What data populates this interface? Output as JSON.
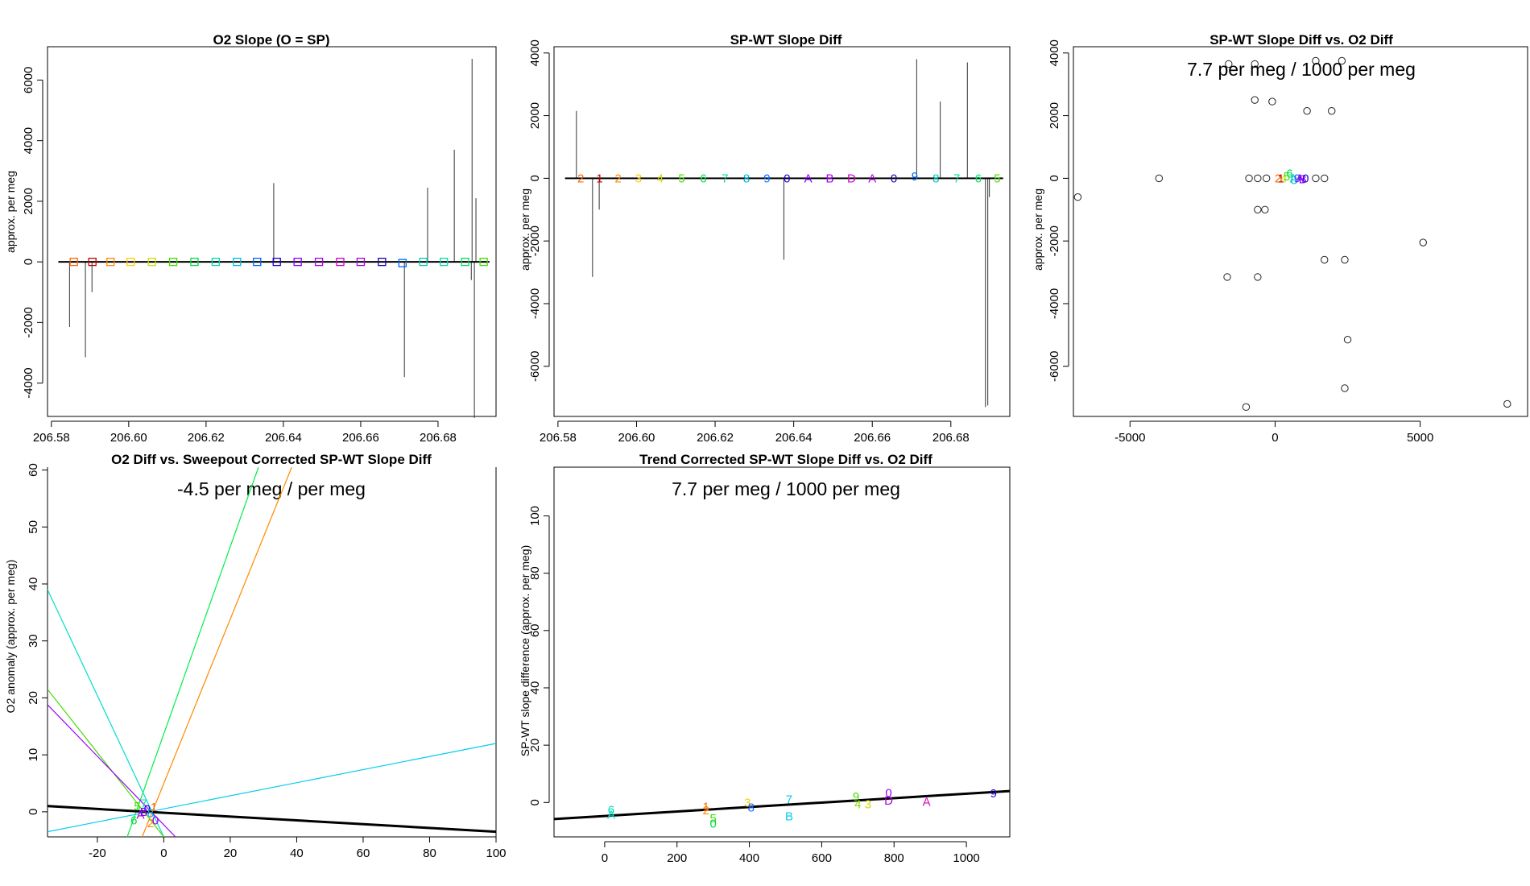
{
  "chart_data": [
    {
      "type": "line",
      "title": "O2 Slope (O = SP)",
      "xlabel": "",
      "ylabel": "approx. per meg",
      "xlim": [
        206.579,
        206.695
      ],
      "ylim": [
        -5100,
        7100
      ],
      "xticks": [
        206.58,
        206.6,
        206.62,
        206.64,
        206.66,
        206.68
      ],
      "xtick_labels": [
        "206.58",
        "206.60",
        "206.62",
        "206.64",
        "206.66",
        "206.68"
      ],
      "yticks": [
        -4000,
        -2000,
        0,
        2000,
        4000,
        6000
      ],
      "ytick_labels": [
        "-4000",
        "-2000",
        "0",
        "2000",
        "4000",
        "6000"
      ],
      "spikes": [
        {
          "x": 206.5847,
          "y": -2150
        },
        {
          "x": 206.5888,
          "y": -3150
        },
        {
          "x": 206.5905,
          "y": -1000
        },
        {
          "x": 206.6375,
          "y": 2600
        },
        {
          "x": 206.6713,
          "y": -3800
        },
        {
          "x": 206.6773,
          "y": 2450
        },
        {
          "x": 206.6842,
          "y": 3700
        },
        {
          "x": 206.6888,
          "y": 6700
        },
        {
          "x": 206.6894,
          "y": -5150
        },
        {
          "x": 206.6898,
          "y": 2100
        },
        {
          "x": 206.6886,
          "y": -600
        }
      ],
      "baseline": {
        "x0": 206.5818,
        "x1": 206.6933,
        "y": 0
      },
      "markers": [
        {
          "x": 206.5858,
          "y": 0,
          "symbol": "square",
          "color": "#ff6600"
        },
        {
          "x": 206.5906,
          "y": 0,
          "symbol": "square",
          "color": "#cc0000"
        },
        {
          "x": 206.5953,
          "y": 0,
          "symbol": "square",
          "color": "#ff8800"
        },
        {
          "x": 206.6005,
          "y": 0,
          "symbol": "square",
          "color": "#ffcc00"
        },
        {
          "x": 206.606,
          "y": 0,
          "symbol": "square",
          "color": "#ccdd00"
        },
        {
          "x": 206.6115,
          "y": 0,
          "symbol": "square",
          "color": "#44dd00"
        },
        {
          "x": 206.617,
          "y": 0,
          "symbol": "square",
          "color": "#00dd44"
        },
        {
          "x": 206.6225,
          "y": 0,
          "symbol": "square",
          "color": "#00ddaa"
        },
        {
          "x": 206.628,
          "y": 0,
          "symbol": "square",
          "color": "#00bbdd"
        },
        {
          "x": 206.6332,
          "y": 0,
          "symbol": "square",
          "color": "#0066ff"
        },
        {
          "x": 206.6383,
          "y": 0,
          "symbol": "square",
          "color": "#2200cc"
        },
        {
          "x": 206.6437,
          "y": 0,
          "symbol": "square",
          "color": "#8800ff"
        },
        {
          "x": 206.6492,
          "y": 0,
          "symbol": "square",
          "color": "#aa00ee"
        },
        {
          "x": 206.6547,
          "y": 0,
          "symbol": "square",
          "color": "#cc00cc"
        },
        {
          "x": 206.66,
          "y": 0,
          "symbol": "square",
          "color": "#aa00dd"
        },
        {
          "x": 206.6655,
          "y": 0,
          "symbol": "square",
          "color": "#2200aa"
        },
        {
          "x": 206.6708,
          "y": -40,
          "symbol": "square",
          "color": "#0066ff"
        },
        {
          "x": 206.6762,
          "y": 0,
          "symbol": "square",
          "color": "#00ccbb"
        },
        {
          "x": 206.6815,
          "y": 0,
          "symbol": "square",
          "color": "#00ddaa"
        },
        {
          "x": 206.687,
          "y": 0,
          "symbol": "square",
          "color": "#00dd66"
        },
        {
          "x": 206.6918,
          "y": 0,
          "symbol": "square",
          "color": "#44dd00"
        }
      ]
    },
    {
      "type": "line",
      "title": "SP-WT Slope Diff",
      "xlabel": "",
      "ylabel": "approx. per meg",
      "xlim": [
        206.579,
        206.695
      ],
      "ylim": [
        -7600,
        4200
      ],
      "xticks": [
        206.58,
        206.6,
        206.62,
        206.64,
        206.66,
        206.68
      ],
      "xtick_labels": [
        "206.58",
        "206.60",
        "206.62",
        "206.64",
        "206.66",
        "206.68"
      ],
      "yticks": [
        -6000,
        -4000,
        -2000,
        0,
        2000,
        4000
      ],
      "ytick_labels": [
        "-6000",
        "-4000",
        "-2000",
        "0",
        "2000",
        "4000"
      ],
      "spikes": [
        {
          "x": 206.5847,
          "y": 2150
        },
        {
          "x": 206.5888,
          "y": -3150
        },
        {
          "x": 206.5905,
          "y": -1000
        },
        {
          "x": 206.6375,
          "y": -2600
        },
        {
          "x": 206.6713,
          "y": 3800
        },
        {
          "x": 206.6773,
          "y": 2450
        },
        {
          "x": 206.6842,
          "y": 3700
        },
        {
          "x": 206.6888,
          "y": -7300
        },
        {
          "x": 206.6894,
          "y": -7250
        },
        {
          "x": 206.6898,
          "y": -600
        }
      ],
      "baseline": {
        "x0": 206.5818,
        "x1": 206.6933,
        "y": 0
      },
      "markers": [
        {
          "x": 206.5858,
          "y": 0,
          "label": "2",
          "color": "#ff6600"
        },
        {
          "x": 206.5906,
          "y": 0,
          "label": "1",
          "color": "#cc0000"
        },
        {
          "x": 206.5953,
          "y": 0,
          "label": "2",
          "color": "#ff8800"
        },
        {
          "x": 206.6005,
          "y": 0,
          "label": "3",
          "color": "#ffcc00"
        },
        {
          "x": 206.606,
          "y": 0,
          "label": "4",
          "color": "#ccdd00"
        },
        {
          "x": 206.6115,
          "y": 0,
          "label": "5",
          "color": "#44dd00"
        },
        {
          "x": 206.617,
          "y": 0,
          "label": "6",
          "color": "#00dd44"
        },
        {
          "x": 206.6225,
          "y": 0,
          "label": "7",
          "color": "#00ddaa"
        },
        {
          "x": 206.628,
          "y": 0,
          "label": "8",
          "color": "#00bbdd"
        },
        {
          "x": 206.6332,
          "y": 0,
          "label": "9",
          "color": "#0066ff"
        },
        {
          "x": 206.6383,
          "y": 0,
          "label": "0",
          "color": "#2200cc"
        },
        {
          "x": 206.6437,
          "y": 0,
          "label": "A",
          "color": "#8800ff"
        },
        {
          "x": 206.6492,
          "y": 0,
          "label": "B",
          "color": "#aa00ee"
        },
        {
          "x": 206.6547,
          "y": 0,
          "label": "D",
          "color": "#cc00cc"
        },
        {
          "x": 206.66,
          "y": 0,
          "label": "A",
          "color": "#aa00dd"
        },
        {
          "x": 206.6655,
          "y": 0,
          "label": "0",
          "color": "#2200aa"
        },
        {
          "x": 206.6708,
          "y": 60,
          "label": "9",
          "color": "#0066ff"
        },
        {
          "x": 206.6762,
          "y": 0,
          "label": "8",
          "color": "#00ccbb"
        },
        {
          "x": 206.6815,
          "y": 0,
          "label": "7",
          "color": "#00ddaa"
        },
        {
          "x": 206.687,
          "y": 0,
          "label": "6",
          "color": "#00dd66"
        },
        {
          "x": 206.6918,
          "y": 0,
          "label": "5",
          "color": "#44dd00"
        }
      ]
    },
    {
      "type": "scatter",
      "title": "SP-WT Slope Diff vs. O2 Diff",
      "annotation": "7.7 per meg / 1000 per meg",
      "xlabel": "",
      "ylabel": "approx. per meg",
      "xlim": [
        -6950,
        8700
      ],
      "ylim": [
        -7600,
        4200
      ],
      "xticks": [
        -5000,
        0,
        5000
      ],
      "xtick_labels": [
        "-5000",
        "0",
        "5000"
      ],
      "yticks": [
        -6000,
        -4000,
        -2000,
        0,
        2000,
        4000
      ],
      "ytick_labels": [
        "-6000",
        "-4000",
        "-2000",
        "0",
        "2000",
        "4000"
      ],
      "points": [
        {
          "x": -1600,
          "y": 3650
        },
        {
          "x": -700,
          "y": 3650
        },
        {
          "x": 1400,
          "y": 3750
        },
        {
          "x": 2300,
          "y": 3750
        },
        {
          "x": -700,
          "y": 2500
        },
        {
          "x": -100,
          "y": 2450
        },
        {
          "x": 1100,
          "y": 2150
        },
        {
          "x": 1950,
          "y": 2150
        },
        {
          "x": -6800,
          "y": -600
        },
        {
          "x": -4000,
          "y": 0
        },
        {
          "x": -900,
          "y": 0
        },
        {
          "x": -600,
          "y": 0
        },
        {
          "x": -300,
          "y": 0
        },
        {
          "x": -600,
          "y": -1000
        },
        {
          "x": -350,
          "y": -1000
        },
        {
          "x": 5100,
          "y": -2050
        },
        {
          "x": -1650,
          "y": -3150
        },
        {
          "x": -600,
          "y": -3150
        },
        {
          "x": 1700,
          "y": -2600
        },
        {
          "x": 2400,
          "y": -2600
        },
        {
          "x": 2500,
          "y": -5150
        },
        {
          "x": 2400,
          "y": -6700
        },
        {
          "x": -1000,
          "y": -7300
        },
        {
          "x": 8000,
          "y": -7200
        },
        {
          "x": 1400,
          "y": 0
        },
        {
          "x": 1700,
          "y": 0
        }
      ],
      "cluster_labels": [
        {
          "x": 100,
          "y": 0,
          "label": "2",
          "color": "#ff6600"
        },
        {
          "x": 200,
          "y": 0,
          "label": "1",
          "color": "#cc0000"
        },
        {
          "x": 300,
          "y": 0,
          "label": "4",
          "color": "#ccdd00"
        },
        {
          "x": 400,
          "y": 60,
          "label": "5",
          "color": "#44dd00"
        },
        {
          "x": 500,
          "y": 150,
          "label": "6",
          "color": "#00dd44"
        },
        {
          "x": 560,
          "y": 0,
          "label": "7",
          "color": "#00ddaa"
        },
        {
          "x": 650,
          "y": -60,
          "label": "8",
          "color": "#00bbdd"
        },
        {
          "x": 760,
          "y": 0,
          "label": "9",
          "color": "#0066ff"
        },
        {
          "x": 850,
          "y": 0,
          "label": "A",
          "color": "#aa00dd"
        },
        {
          "x": 950,
          "y": -30,
          "label": "B",
          "color": "#8800ff"
        },
        {
          "x": 1050,
          "y": 0,
          "label": "0",
          "color": "#2200cc"
        }
      ]
    },
    {
      "type": "line",
      "title": "O2 Diff vs. Sweepout Corrected SP-WT Slope Diff",
      "annotation": "-4.5 per meg / per meg",
      "xlabel": "",
      "ylabel": "O2 anomaly (approx. per meg)",
      "xlim": [
        -35,
        100
      ],
      "ylim": [
        -4.4,
        60.5
      ],
      "xticks": [
        -20,
        0,
        20,
        40,
        60,
        80,
        100
      ],
      "xtick_labels": [
        "-20",
        "0",
        "20",
        "40",
        "60",
        "80",
        "100"
      ],
      "yticks": [
        0,
        10,
        20,
        30,
        40,
        50,
        60
      ],
      "ytick_labels": [
        "0",
        "10",
        "20",
        "30",
        "40",
        "50",
        "60"
      ],
      "fit_line": {
        "x0": -35,
        "y0": 1.0,
        "x1": 100,
        "y1": -3.5,
        "color": "#000000"
      },
      "lines": [
        {
          "x0": -11,
          "y0": -4.4,
          "x1": 28.5,
          "y1": 60.5,
          "color": "#00ee44"
        },
        {
          "x0": -6.5,
          "y0": -4.4,
          "x1": 38.5,
          "y1": 60.5,
          "color": "#ff8800"
        },
        {
          "x0": -35,
          "y0": 39,
          "x1": 0,
          "y1": -4.4,
          "color": "#00ddcc"
        },
        {
          "x0": -35,
          "y0": -3.5,
          "x1": 100,
          "y1": 12,
          "color": "#00ccee"
        },
        {
          "x0": -35,
          "y0": 21.5,
          "x1": 0,
          "y1": -4.4,
          "color": "#44dd00"
        },
        {
          "x0": -35,
          "y0": 18.8,
          "x1": 3.5,
          "y1": -4.4,
          "color": "#9900ff"
        }
      ],
      "points": [
        {
          "x": -8,
          "y": 1.0,
          "label": "5",
          "color": "#44dd00"
        },
        {
          "x": -6,
          "y": 1.5,
          "label": "7",
          "color": "#00ddaa"
        },
        {
          "x": -5,
          "y": 0.5,
          "label": "0",
          "color": "#2200cc"
        },
        {
          "x": -7,
          "y": -0.5,
          "label": "A",
          "color": "#aa00dd"
        },
        {
          "x": -4,
          "y": -0.2,
          "label": "8",
          "color": "#00bbdd"
        },
        {
          "x": -3,
          "y": 0.8,
          "label": "1",
          "color": "#ff6600"
        },
        {
          "x": -9,
          "y": -1.5,
          "label": "6",
          "color": "#00dd44"
        },
        {
          "x": -4,
          "y": -2.0,
          "label": "2",
          "color": "#ff8800"
        },
        {
          "x": -2.5,
          "y": -1.5,
          "label": "0",
          "color": "#9900ff"
        },
        {
          "x": -6,
          "y": 0.0,
          "label": "B",
          "color": "#8800ff"
        }
      ]
    },
    {
      "type": "scatter",
      "title": "Trend Corrected SP-WT Slope Diff vs. O2 Diff",
      "annotation": "7.7 per meg / 1000 per meg",
      "xlabel": "",
      "ylabel": "SP-WT slope difference (approx. per meg)",
      "xlim": [
        -140,
        1120
      ],
      "ylim": [
        -12,
        117
      ],
      "xticks": [
        0,
        200,
        400,
        600,
        800,
        1000
      ],
      "xtick_labels": [
        "0",
        "200",
        "400",
        "600",
        "800",
        "1000"
      ],
      "yticks": [
        0,
        20,
        40,
        60,
        80,
        100
      ],
      "ytick_labels": [
        "0",
        "20",
        "40",
        "60",
        "80",
        "100"
      ],
      "fit_line": {
        "x0": -140,
        "y0": -5.8,
        "x1": 1120,
        "y1": 4.0,
        "color": "#000000"
      },
      "points": [
        {
          "x": 18,
          "y": -2.6,
          "label": "6",
          "color": "#00ddaa"
        },
        {
          "x": 18,
          "y": -4.3,
          "label": "A",
          "color": "#00ddcc"
        },
        {
          "x": 280,
          "y": -1.5,
          "label": "1",
          "color": "#ff6600"
        },
        {
          "x": 280,
          "y": -2.7,
          "label": "2",
          "color": "#ff8800"
        },
        {
          "x": 300,
          "y": -5.5,
          "label": "5",
          "color": "#44dd00"
        },
        {
          "x": 300,
          "y": -7.3,
          "label": "0",
          "color": "#00dd44"
        },
        {
          "x": 395,
          "y": 0.0,
          "label": "3",
          "color": "#ffcc00"
        },
        {
          "x": 405,
          "y": -1.7,
          "label": "8",
          "color": "#2266ff"
        },
        {
          "x": 510,
          "y": 1.0,
          "label": "7",
          "color": "#00ccee"
        },
        {
          "x": 510,
          "y": -4.8,
          "label": "B",
          "color": "#00ccee"
        },
        {
          "x": 695,
          "y": 2.0,
          "label": "9",
          "color": "#44dd00"
        },
        {
          "x": 700,
          "y": -0.6,
          "label": "4",
          "color": "#88dd00"
        },
        {
          "x": 728,
          "y": -0.6,
          "label": "3",
          "color": "#ccdd00"
        },
        {
          "x": 785,
          "y": 3.3,
          "label": "0",
          "color": "#9900ff"
        },
        {
          "x": 785,
          "y": 0.6,
          "label": "D",
          "color": "#aa00dd"
        },
        {
          "x": 890,
          "y": 0.2,
          "label": "A",
          "color": "#dd00cc"
        },
        {
          "x": 1075,
          "y": 3.2,
          "label": "9",
          "color": "#2200cc"
        }
      ]
    }
  ]
}
